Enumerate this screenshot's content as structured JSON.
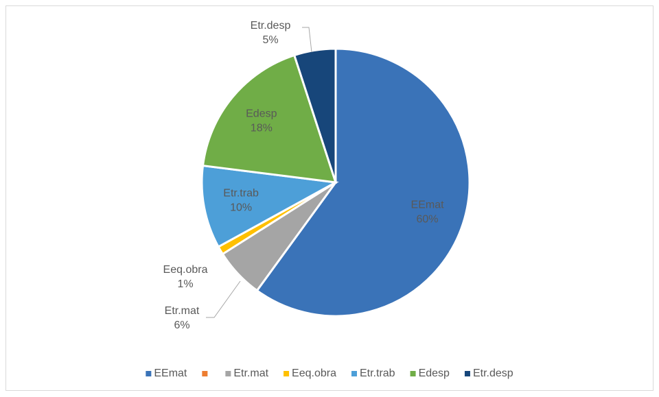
{
  "chart_data": {
    "type": "pie",
    "categories": [
      "EEmat",
      null,
      "Etr.mat",
      "Eeq.obra",
      "Etr.trab",
      "Edesp",
      "Etr.desp"
    ],
    "values": [
      60,
      0,
      6,
      1,
      10,
      18,
      5
    ],
    "value_labels": [
      "60%",
      null,
      "6%",
      "1%",
      "10%",
      "18%",
      "5%"
    ],
    "colors": [
      "#3a73b8",
      "#ed7d31",
      "#a5a5a5",
      "#ffc000",
      "#4d9fd8",
      "#70ad47",
      "#17467a"
    ],
    "legend": "bottom"
  }
}
